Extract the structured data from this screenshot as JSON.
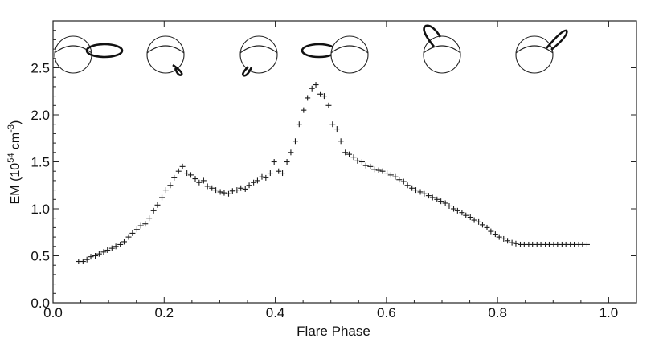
{
  "chart_data": {
    "type": "scatter",
    "xlabel": "Flare Phase",
    "ylabel": "EM (10^54 cm^-3)",
    "ylabel_parts": {
      "base": "EM (10",
      "exp1": "54",
      "mid": " cm",
      "exp2": "-3",
      "close": ")"
    },
    "xlim": [
      0.0,
      1.05
    ],
    "ylim": [
      0.0,
      3.0
    ],
    "x_ticks": [
      "0.0",
      "0.2",
      "0.4",
      "0.6",
      "0.8",
      "1.0"
    ],
    "x_tick_values": [
      0.0,
      0.2,
      0.4,
      0.6,
      0.8,
      1.0
    ],
    "y_ticks": [
      "0.0",
      "0.5",
      "1.0",
      "1.5",
      "2.0",
      "2.5"
    ],
    "y_tick_values": [
      0.0,
      0.5,
      1.0,
      1.5,
      2.0,
      2.5
    ],
    "marker": "plus",
    "grid": false,
    "legend": "none",
    "inset_icons": "star sphere with flaring coronal loop shown at six orientations along the top of the plot",
    "series": [
      {
        "x": [
          0.046,
          0.054,
          0.061,
          0.068,
          0.076,
          0.083,
          0.091,
          0.098,
          0.106,
          0.113,
          0.121,
          0.128,
          0.136,
          0.143,
          0.151,
          0.158,
          0.166,
          0.173,
          0.181,
          0.188,
          0.196,
          0.203,
          0.211,
          0.218,
          0.226,
          0.233,
          0.241,
          0.248,
          0.256,
          0.263,
          0.271,
          0.278,
          0.286,
          0.293,
          0.301,
          0.308,
          0.316,
          0.323,
          0.331,
          0.338,
          0.346,
          0.353,
          0.361,
          0.368,
          0.376,
          0.383,
          0.391,
          0.398,
          0.406,
          0.413,
          0.421,
          0.428,
          0.436,
          0.443,
          0.451,
          0.458,
          0.466,
          0.473,
          0.481,
          0.488,
          0.496,
          0.503,
          0.511,
          0.518,
          0.526,
          0.533,
          0.541,
          0.548,
          0.556,
          0.563,
          0.571,
          0.578,
          0.586,
          0.593,
          0.601,
          0.608,
          0.616,
          0.623,
          0.631,
          0.638,
          0.646,
          0.653,
          0.661,
          0.668,
          0.676,
          0.683,
          0.691,
          0.698,
          0.706,
          0.713,
          0.721,
          0.728,
          0.736,
          0.743,
          0.751,
          0.758,
          0.766,
          0.773,
          0.781,
          0.788,
          0.796,
          0.803,
          0.811,
          0.818,
          0.826,
          0.833,
          0.841,
          0.848,
          0.856,
          0.863,
          0.871,
          0.878,
          0.886,
          0.893,
          0.901,
          0.908,
          0.916,
          0.923,
          0.931,
          0.938,
          0.946,
          0.953,
          0.961
        ],
        "y": [
          0.44,
          0.44,
          0.46,
          0.49,
          0.5,
          0.52,
          0.54,
          0.56,
          0.58,
          0.6,
          0.62,
          0.65,
          0.7,
          0.74,
          0.78,
          0.82,
          0.84,
          0.9,
          0.98,
          1.04,
          1.12,
          1.2,
          1.25,
          1.33,
          1.4,
          1.45,
          1.38,
          1.36,
          1.32,
          1.28,
          1.3,
          1.24,
          1.22,
          1.2,
          1.18,
          1.17,
          1.16,
          1.19,
          1.2,
          1.22,
          1.21,
          1.25,
          1.28,
          1.3,
          1.34,
          1.33,
          1.38,
          1.5,
          1.4,
          1.38,
          1.5,
          1.6,
          1.72,
          1.9,
          2.05,
          2.18,
          2.28,
          2.32,
          2.22,
          2.2,
          2.1,
          1.9,
          1.85,
          1.72,
          1.6,
          1.58,
          1.55,
          1.51,
          1.5,
          1.46,
          1.45,
          1.42,
          1.41,
          1.4,
          1.38,
          1.36,
          1.34,
          1.31,
          1.29,
          1.25,
          1.22,
          1.2,
          1.18,
          1.16,
          1.14,
          1.12,
          1.1,
          1.08,
          1.06,
          1.03,
          1.0,
          0.98,
          0.96,
          0.93,
          0.91,
          0.88,
          0.86,
          0.83,
          0.8,
          0.76,
          0.73,
          0.7,
          0.68,
          0.66,
          0.64,
          0.63,
          0.62,
          0.62,
          0.62,
          0.62,
          0.62,
          0.62,
          0.62,
          0.62,
          0.62,
          0.62,
          0.62,
          0.62,
          0.62,
          0.62,
          0.62,
          0.62,
          0.62
        ]
      }
    ]
  }
}
